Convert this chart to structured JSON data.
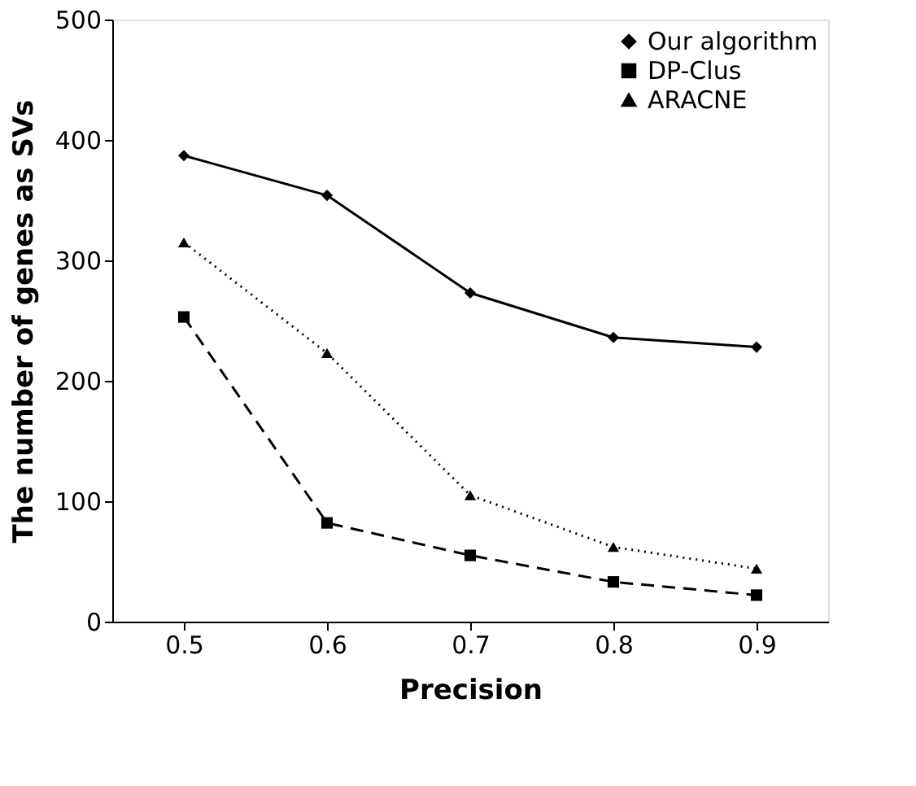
{
  "chart_data": {
    "type": "line",
    "xlabel": "Precision",
    "ylabel": "The number of genes as SVs",
    "categories": [
      "0.5",
      "0.6",
      "0.7",
      "0.8",
      "0.9"
    ],
    "series": [
      {
        "name": "Our algorithm",
        "color": "#000000",
        "marker": "diamond",
        "line_style": "solid",
        "values": [
          387,
          354,
          273,
          236,
          228
        ]
      },
      {
        "name": "DP-Clus",
        "color": "#000000",
        "marker": "square",
        "line_style": "dashed",
        "values": [
          253,
          82,
          55,
          33,
          22
        ]
      },
      {
        "name": "ARACNE",
        "color": "#000000",
        "marker": "triangle",
        "line_style": "dotted",
        "values": [
          315,
          223,
          105,
          62,
          44
        ]
      }
    ],
    "ylim": [
      0,
      500
    ],
    "yticks": [
      0,
      100,
      200,
      300,
      400,
      500
    ],
    "grid": false,
    "legend": "top right"
  }
}
